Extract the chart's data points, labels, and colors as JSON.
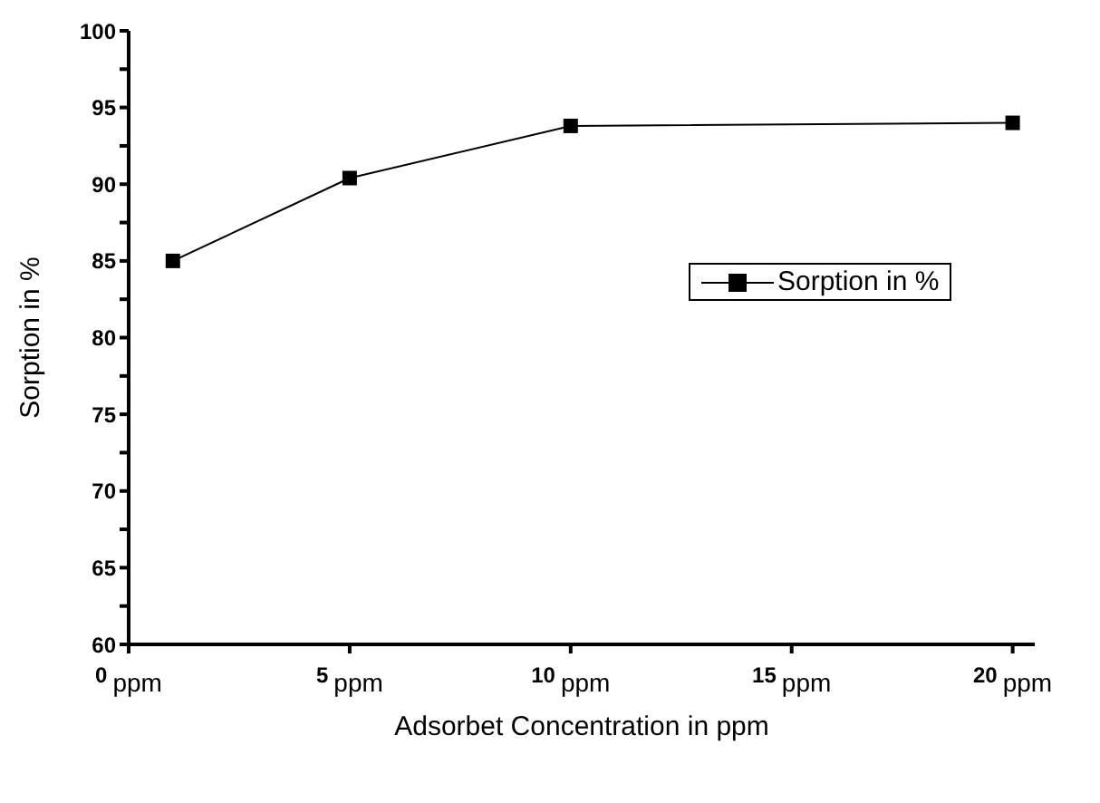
{
  "chart_data": {
    "type": "line",
    "xlabel": "Adsorbet Concentration in ppm",
    "ylabel": "Sorption in %",
    "x": [
      1,
      5,
      10,
      20
    ],
    "series": [
      {
        "name": "Sorption in %",
        "color": "#000000",
        "values": [
          85.0,
          90.4,
          93.8,
          94.0
        ]
      }
    ],
    "xlim": [
      0,
      20.5
    ],
    "xticks": [
      {
        "value": 0,
        "label": "0 ppm"
      },
      {
        "value": 5,
        "label": "5 ppm"
      },
      {
        "value": 10,
        "label": "10 ppm"
      },
      {
        "value": 15,
        "label": "15 ppm"
      },
      {
        "value": 20,
        "label": "20 ppm"
      }
    ],
    "ylim": [
      60,
      100
    ],
    "yticks": [
      60,
      {
        "value": 62.5,
        "label": null
      },
      65,
      {
        "value": 67.5,
        "label": null
      },
      70,
      {
        "value": 72.5,
        "label": null
      },
      75,
      {
        "value": 77.5,
        "label": null
      },
      80,
      {
        "value": 82.5,
        "label": null
      },
      85,
      {
        "value": 87.5,
        "label": null
      },
      90,
      {
        "value": 92.5,
        "label": null
      },
      95,
      {
        "value": 97.5,
        "label": null
      },
      100
    ],
    "marker": "square",
    "line_style": "solid",
    "legend": "right",
    "grid": false
  }
}
